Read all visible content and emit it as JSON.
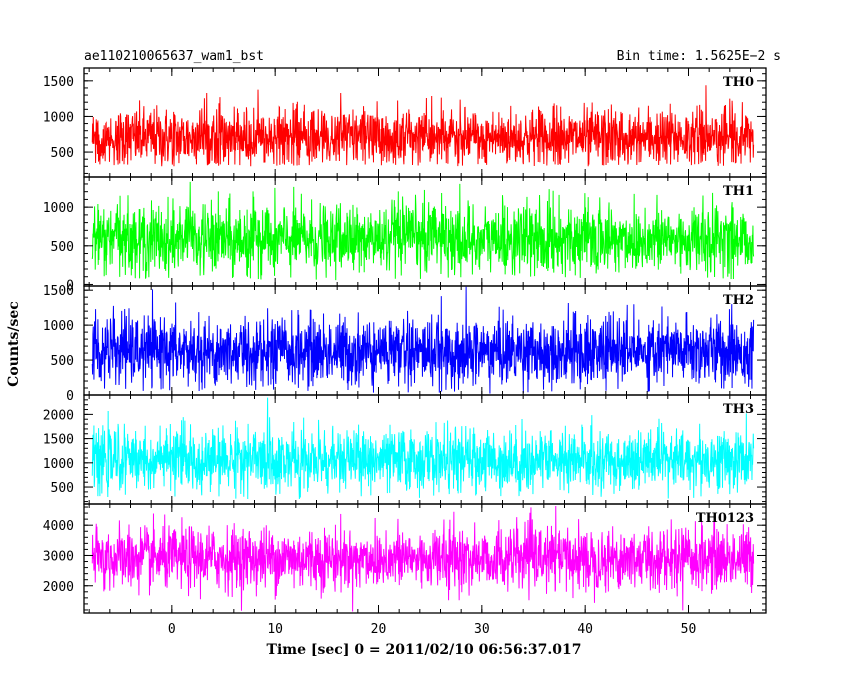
{
  "chart_data": {
    "type": "line",
    "title_left": "ae110210065637_wam1_bst",
    "title_right": "Bin time: 1.5625E−2 s",
    "xlabel": "Time [sec] 0 = 2011/02/10 06:56:37.017",
    "ylabel": "Counts/sec",
    "xlim": [
      -8.5,
      57.5
    ],
    "data_range": [
      -7.7,
      56.3
    ],
    "x_ticks": [
      0,
      10,
      20,
      30,
      40,
      50
    ],
    "x_tick_labels": [
      "0",
      "10",
      "20",
      "30",
      "40",
      "50"
    ],
    "x_minor_step": 2,
    "series": [
      {
        "name": "TH0",
        "color": "#ff0000",
        "ylim": [
          150,
          1680
        ],
        "y_ticks": [
          500,
          1000,
          1500
        ],
        "y_tick_labels": [
          "500",
          "1000",
          "1500"
        ],
        "mean": 700,
        "sd": 210,
        "min": 300,
        "max": 1680
      },
      {
        "name": "TH1",
        "color": "#00ff00",
        "ylim": [
          -20,
          1390
        ],
        "y_ticks": [
          0,
          500,
          1000
        ],
        "y_tick_labels": [
          "0",
          "500",
          "1000"
        ],
        "mean": 580,
        "sd": 230,
        "min": 50,
        "max": 1380
      },
      {
        "name": "TH2",
        "color": "#0000ff",
        "ylim": [
          0,
          1560
        ],
        "y_ticks": [
          0,
          500,
          1000,
          1500
        ],
        "y_tick_labels": [
          "0",
          "500",
          "1000",
          "1500"
        ],
        "mean": 620,
        "sd": 250,
        "min": 20,
        "max": 1550
      },
      {
        "name": "TH3",
        "color": "#00ffff",
        "ylim": [
          150,
          2400
        ],
        "y_ticks": [
          500,
          1000,
          1500,
          2000
        ],
        "y_tick_labels": [
          "500",
          "1000",
          "1500",
          "2000"
        ],
        "mean": 1050,
        "sd": 320,
        "min": 250,
        "max": 2400
      },
      {
        "name": "TH0123",
        "color": "#ff00ff",
        "ylim": [
          1100,
          4700
        ],
        "y_ticks": [
          2000,
          3000,
          4000
        ],
        "y_tick_labels": [
          "2000",
          "3000",
          "4000"
        ],
        "mean": 2900,
        "sd": 520,
        "min": 1150,
        "max": 4700
      }
    ]
  }
}
